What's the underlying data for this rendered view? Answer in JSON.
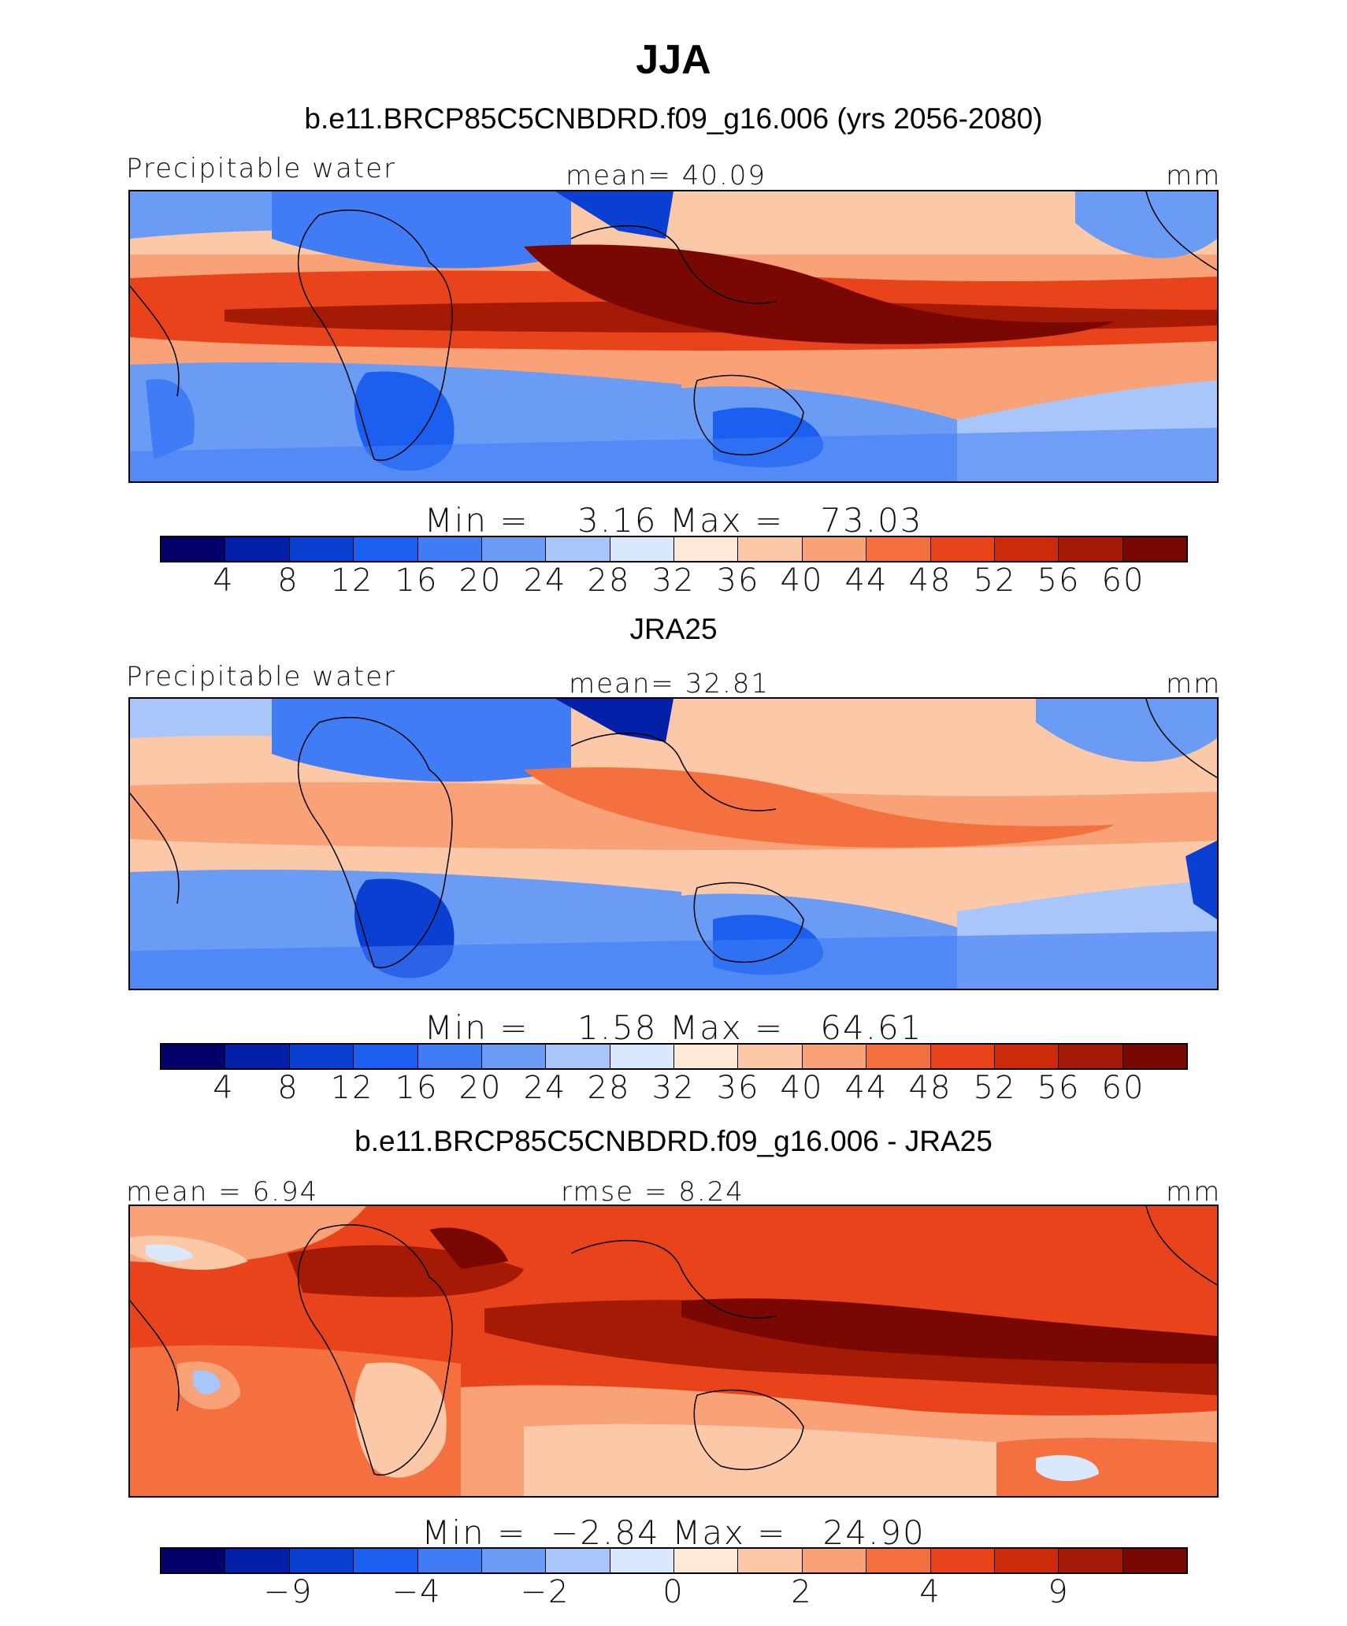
{
  "title": "JJA",
  "colors": [
    "#03006b",
    "#0520a8",
    "#0a3fd1",
    "#1b5ff0",
    "#3f7cf5",
    "#6a9bf5",
    "#a9c6fb",
    "#d9e8fd",
    "#fde9d6",
    "#fcc9a8",
    "#faa277",
    "#f5703f",
    "#e8431b",
    "#cc2a0a",
    "#a41a04",
    "#7a0802"
  ],
  "panels": [
    {
      "subtitle": "b.e11.BRCP85C5CNBDRD.f09_g16.006 (yrs 2056-2080)",
      "left_label": "Precipitable water",
      "center_label": "mean=   40.09",
      "units": "mm",
      "minmax": "Min =    3.16 Max =   73.03",
      "ticks": [
        "4",
        "8",
        "12",
        "16",
        "20",
        "24",
        "28",
        "32",
        "36",
        "40",
        "44",
        "48",
        "52",
        "56",
        "60"
      ]
    },
    {
      "subtitle": "JRA25",
      "left_label": "Precipitable water",
      "center_label": "mean=   32.81",
      "units": "mm",
      "minmax": "Min =    1.58 Max =   64.61",
      "ticks": [
        "4",
        "8",
        "12",
        "16",
        "20",
        "24",
        "28",
        "32",
        "36",
        "40",
        "44",
        "48",
        "52",
        "56",
        "60"
      ]
    },
    {
      "subtitle": "b.e11.BRCP85C5CNBDRD.f09_g16.006 - JRA25",
      "left_label": "mean =    6.94",
      "center_label": "rmse =    8.24",
      "units": "mm",
      "minmax": "Min =  −2.84 Max =   24.90",
      "ticks": [
        "−9",
        "−4",
        "−2",
        "0",
        "2",
        "4",
        "9"
      ]
    }
  ]
}
